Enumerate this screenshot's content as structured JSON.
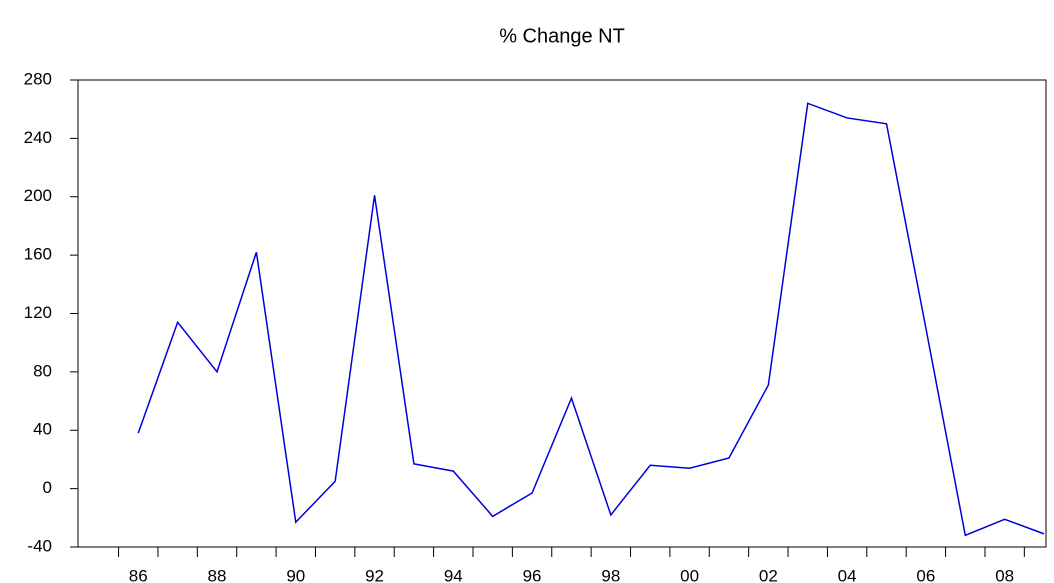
{
  "chart_data": {
    "type": "line",
    "title": "% Change NT",
    "x": [
      1986,
      1987,
      1988,
      1989,
      1990,
      1991,
      1992,
      1993,
      1994,
      1995,
      1996,
      1997,
      1998,
      1999,
      2000,
      2001,
      2002,
      2003,
      2004,
      2005,
      2006,
      2007,
      2008,
      2009
    ],
    "series": [
      {
        "name": "% Change NT",
        "color": "#0000dd",
        "values": [
          38,
          114,
          80,
          162,
          -23,
          5,
          201,
          17,
          12,
          -19,
          -3,
          62,
          -18,
          16,
          14,
          21,
          71,
          264,
          254,
          250,
          110,
          -32,
          -21,
          -31
        ]
      }
    ],
    "xlim": [
      1984.47,
      2009.05
    ],
    "xticks": [
      {
        "value": 1986,
        "label": "86"
      },
      {
        "value": 1988,
        "label": "88"
      },
      {
        "value": 1990,
        "label": "90"
      },
      {
        "value": 1992,
        "label": "92"
      },
      {
        "value": 1994,
        "label": "94"
      },
      {
        "value": 1996,
        "label": "96"
      },
      {
        "value": 1998,
        "label": "98"
      },
      {
        "value": 2000,
        "label": "00"
      },
      {
        "value": 2002,
        "label": "02"
      },
      {
        "value": 2004,
        "label": "04"
      },
      {
        "value": 2006,
        "label": "06"
      },
      {
        "value": 2008,
        "label": "08"
      }
    ],
    "ylim": [
      -40,
      280
    ],
    "yticks": [
      -40,
      0,
      40,
      80,
      120,
      160,
      200,
      240,
      280
    ],
    "grid": false
  }
}
